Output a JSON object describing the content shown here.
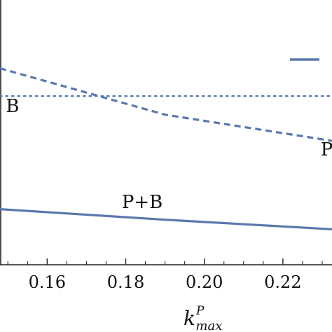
{
  "chart_data": {
    "type": "line",
    "x_ticks": [
      0.16,
      0.18,
      0.2,
      0.22
    ],
    "x_tick_labels": [
      "0.16",
      "0.18",
      "0.20",
      "0.22"
    ],
    "xlabel": {
      "main": "k",
      "superscript": "P",
      "subscript": "max"
    },
    "xlim": [
      0.148,
      0.2325
    ],
    "ylim": [
      0,
      1
    ],
    "series": [
      {
        "key": "pb",
        "style": "solid",
        "color": "#5a78ad",
        "x": [
          0.148,
          0.19,
          0.2325
        ],
        "y": [
          0.21,
          0.17,
          0.134
        ]
      },
      {
        "key": "p",
        "style": "dashed",
        "color": "#5a78ad",
        "x": [
          0.148,
          0.19,
          0.2325
        ],
        "y": [
          0.742,
          0.567,
          0.468
        ]
      },
      {
        "key": "b",
        "style": "dotted",
        "color": "#5a78ad",
        "x": [
          0.148,
          0.2325
        ],
        "y": [
          0.637,
          0.637
        ]
      }
    ],
    "annotations": [
      {
        "key": "b",
        "text": "B",
        "x": 0.1495,
        "y": 0.577
      },
      {
        "key": "pb",
        "text": "P+B",
        "x": 0.179,
        "y": 0.214
      },
      {
        "key": "p",
        "text": "P",
        "x": 0.2296,
        "y": 0.413
      }
    ],
    "legend_placement": "top-right",
    "legend_color": "#5a78ad",
    "grid": false
  }
}
